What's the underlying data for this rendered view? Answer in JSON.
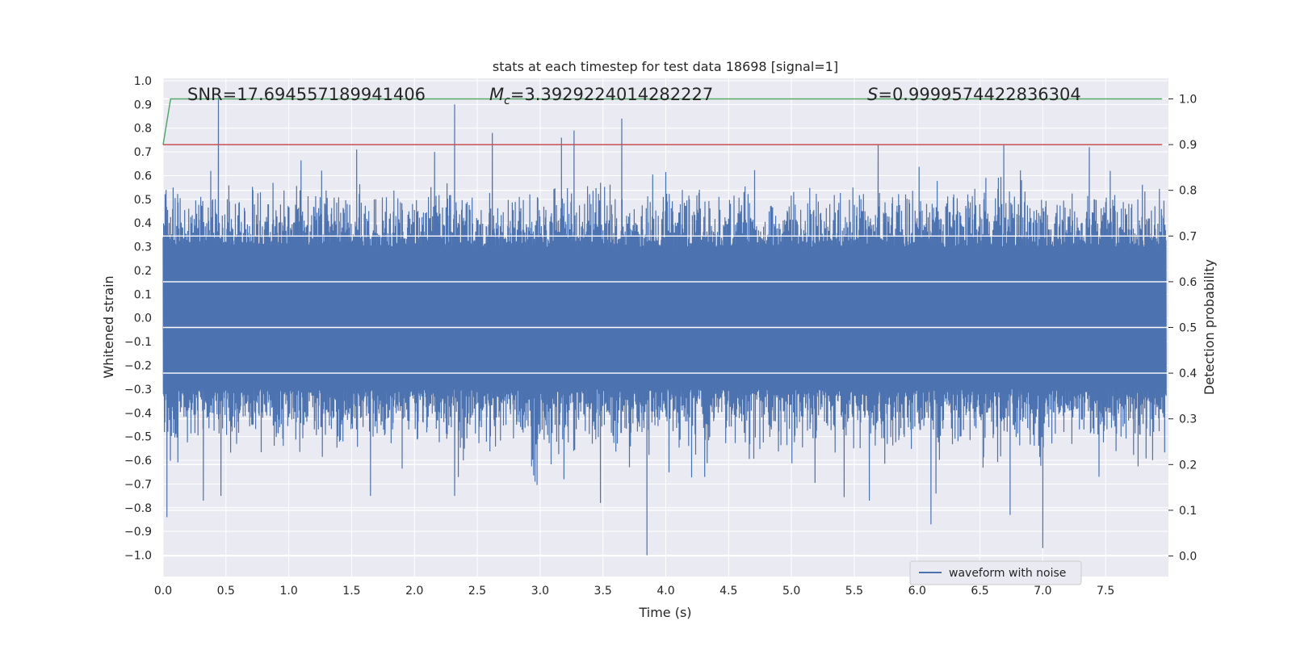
{
  "chart_data": {
    "type": "line",
    "title": "stats at each timestep for test data 18698 [signal=1]",
    "xlabel": "Time (s)",
    "ylabel_left": "Whitened strain",
    "ylabel_right": "Detection probability",
    "xlim": [
      0.0,
      8.0
    ],
    "ylim_left": [
      -1.09,
      1.01
    ],
    "ylim_right": [
      -0.045,
      1.045
    ],
    "x_ticks": [
      "0.0",
      "0.5",
      "1.0",
      "1.5",
      "2.0",
      "2.5",
      "3.0",
      "3.5",
      "4.0",
      "4.5",
      "5.0",
      "5.5",
      "6.0",
      "6.5",
      "7.0",
      "7.5"
    ],
    "y_ticks_left": [
      "1.0",
      "0.9",
      "0.8",
      "0.7",
      "0.6",
      "0.5",
      "0.4",
      "0.3",
      "0.2",
      "0.1",
      "0.0",
      "−0.1",
      "−0.2",
      "−0.3",
      "−0.4",
      "−0.5",
      "−0.6",
      "−0.7",
      "−0.8",
      "−0.9",
      "−1.0"
    ],
    "y_ticks_right": [
      "1.0",
      "0.9",
      "0.8",
      "0.7",
      "0.6",
      "0.5",
      "0.4",
      "0.3",
      "0.2",
      "0.1",
      "0.0"
    ],
    "grid": true,
    "annotations": {
      "snr": "SNR=17.694557189941406",
      "mc_symbol": "M",
      "mc_subscript": "c",
      "mc_value": "=3.3929224014282227",
      "s_symbol": "S",
      "s_value": "=0.9999574422836304"
    },
    "legend": {
      "label": "waveform with noise",
      "placement": "lower-right"
    },
    "series": [
      {
        "name": "waveform with noise",
        "axis": "left",
        "color": "#4c72b0",
        "sample_count": 2000,
        "band_upper": 0.3,
        "band_lower": -0.3,
        "peaks_upper": [
          {
            "x": 0.44,
            "y": 0.93
          },
          {
            "x": 2.32,
            "y": 0.9
          },
          {
            "x": 2.62,
            "y": 0.78
          },
          {
            "x": 3.17,
            "y": 0.76
          },
          {
            "x": 3.27,
            "y": 0.79
          },
          {
            "x": 3.65,
            "y": 0.84
          },
          {
            "x": 1.54,
            "y": 0.71
          },
          {
            "x": 5.69,
            "y": 0.73
          },
          {
            "x": 6.69,
            "y": 0.73
          },
          {
            "x": 7.37,
            "y": 0.72
          },
          {
            "x": 2.16,
            "y": 0.7
          },
          {
            "x": 0.08,
            "y": 0.55
          }
        ],
        "peaks_lower": [
          {
            "x": 0.03,
            "y": -0.84
          },
          {
            "x": 3.85,
            "y": -1.0
          },
          {
            "x": 6.11,
            "y": -0.87
          },
          {
            "x": 7.0,
            "y": -0.97
          },
          {
            "x": 6.74,
            "y": -0.83
          },
          {
            "x": 0.46,
            "y": -0.75
          },
          {
            "x": 0.32,
            "y": -0.77
          },
          {
            "x": 1.65,
            "y": -0.75
          },
          {
            "x": 2.32,
            "y": -0.75
          },
          {
            "x": 3.48,
            "y": -0.78
          },
          {
            "x": 5.62,
            "y": -0.77
          },
          {
            "x": 4.31,
            "y": -0.67
          },
          {
            "x": 2.96,
            "y": -0.69
          },
          {
            "x": 6.15,
            "y": -0.74
          },
          {
            "x": 3.19,
            "y": -0.68
          }
        ]
      },
      {
        "name": "detection probability",
        "axis": "right",
        "color": "#55a868",
        "points": [
          [
            0.0,
            0.9
          ],
          [
            0.06,
            1.0
          ],
          [
            7.95,
            1.0
          ]
        ]
      },
      {
        "name": "threshold",
        "axis": "right",
        "color": "#c44e52",
        "points": [
          [
            0.0,
            0.9
          ],
          [
            7.95,
            0.9
          ]
        ]
      }
    ]
  }
}
